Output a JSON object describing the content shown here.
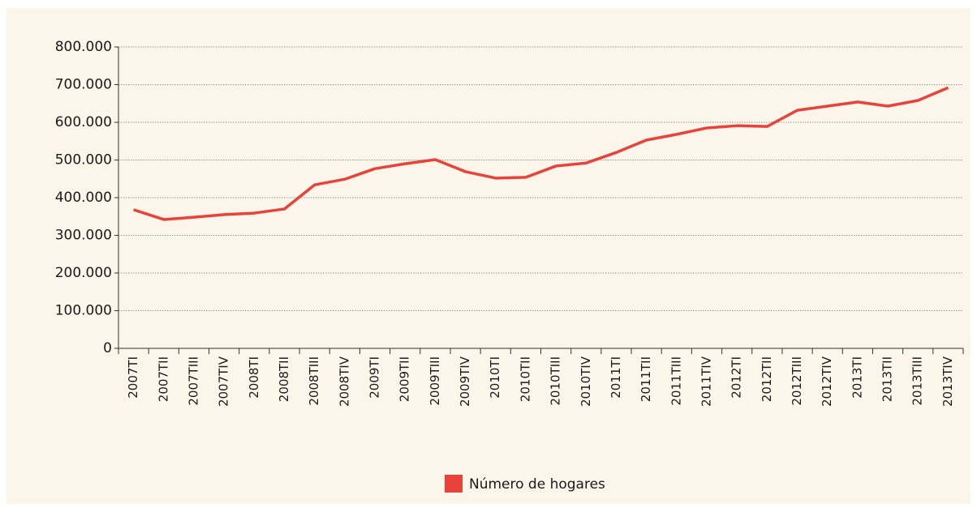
{
  "chart_data": {
    "type": "line",
    "categories": [
      "2007TI",
      "2007TII",
      "2007TIII",
      "2007TIV",
      "2008TI",
      "2008TII",
      "2008TIII",
      "2008TIV",
      "2009TI",
      "2009TII",
      "2009TIII",
      "2009TIV",
      "2010TI",
      "2010TII",
      "2010TIII",
      "2010TIV",
      "2011TI",
      "2011TII",
      "2011TIII",
      "2011TIV",
      "2012TI",
      "2012TII",
      "2012TIII",
      "2012TIV",
      "2013TI",
      "2013TII",
      "2013TIII",
      "2013TIV"
    ],
    "series": [
      {
        "name": "Número de hogares",
        "color": "#e8433a",
        "values": [
          368000,
          342000,
          348000,
          355000,
          359000,
          370000,
          434000,
          449000,
          477000,
          490000,
          501000,
          469000,
          452000,
          454000,
          484000,
          492000,
          520000,
          553000,
          568000,
          585000,
          591000,
          589000,
          632000,
          643000,
          654000,
          643000,
          658000,
          692000
        ]
      }
    ],
    "ylim": [
      0,
      800000
    ],
    "yticks": [
      0,
      {
        "value": 100000,
        "label": "100.000"
      },
      {
        "value": 200000,
        "label": "200.000"
      },
      {
        "value": 300000,
        "label": "300.000"
      },
      {
        "value": 400000,
        "label": "400.000"
      },
      {
        "value": 500000,
        "label": "500.000"
      },
      {
        "value": 600000,
        "label": "600.000"
      },
      {
        "value": 700000,
        "label": "700.000"
      },
      {
        "value": 800000,
        "label": "800.000"
      }
    ],
    "grid": true,
    "legend": "bottom"
  }
}
